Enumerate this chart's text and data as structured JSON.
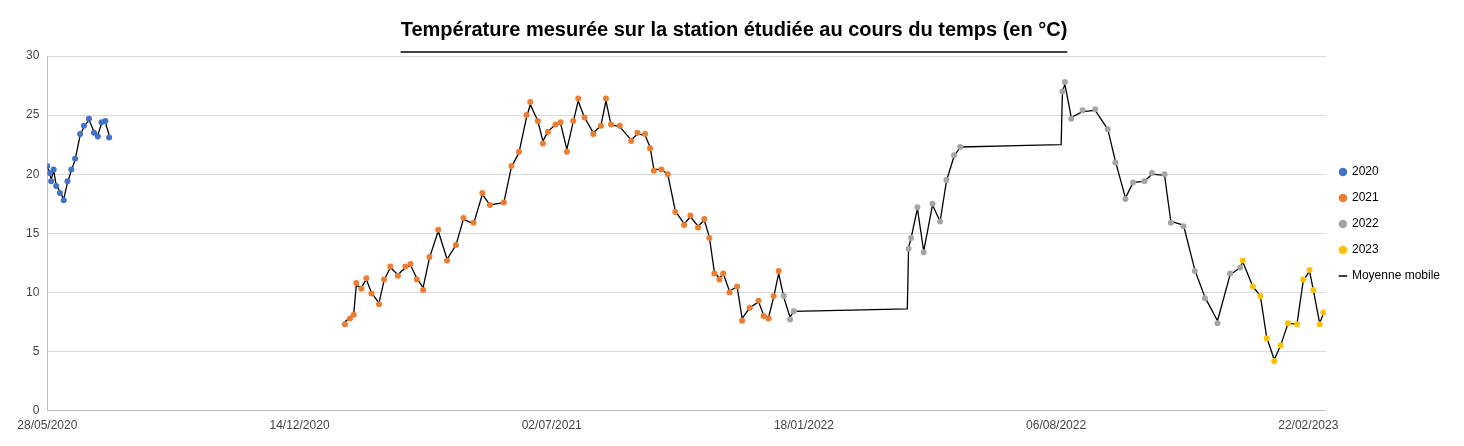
{
  "chart_data": {
    "type": "scatter",
    "title": "Température mesurée sur la station étudiée au cours du temps (en °C)",
    "xlim": [
      "2020-05-28",
      "2023-03-08"
    ],
    "xticks": [
      {
        "value": "2020-05-28",
        "label": "28/05/2020"
      },
      {
        "value": "2020-12-14",
        "label": "14/12/2020"
      },
      {
        "value": "2021-07-02",
        "label": "02/07/2021"
      },
      {
        "value": "2022-01-18",
        "label": "18/01/2022"
      },
      {
        "value": "2022-08-06",
        "label": "06/08/2022"
      },
      {
        "value": "2023-02-22",
        "label": "22/02/2023"
      }
    ],
    "ylim": [
      0,
      30
    ],
    "yticks": [
      0,
      5,
      10,
      15,
      20,
      25,
      30
    ],
    "grid": "y",
    "legend": "right",
    "marker": "circle",
    "series": [
      {
        "name": "2020",
        "color": "#4472c4",
        "x": [
          "2020-05-28",
          "2020-05-30",
          "2020-05-31",
          "2020-06-02",
          "2020-06-04",
          "2020-06-07",
          "2020-06-10",
          "2020-06-13",
          "2020-06-16",
          "2020-06-19",
          "2020-06-23",
          "2020-06-26",
          "2020-06-30",
          "2020-07-04",
          "2020-07-07",
          "2020-07-10",
          "2020-07-13",
          "2020-07-16"
        ],
        "values": [
          20.7,
          20.1,
          19.4,
          20.4,
          19.0,
          18.4,
          17.8,
          19.4,
          20.4,
          21.3,
          23.4,
          24.1,
          24.7,
          23.5,
          23.2,
          24.4,
          24.5,
          23.1
        ]
      },
      {
        "name": "2021",
        "color": "#ed7d31",
        "x": [
          "2021-01-19",
          "2021-01-23",
          "2021-01-26",
          "2021-01-28",
          "2021-02-01",
          "2021-02-05",
          "2021-02-09",
          "2021-02-15",
          "2021-02-19",
          "2021-02-24",
          "2021-03-02",
          "2021-03-08",
          "2021-03-12",
          "2021-03-17",
          "2021-03-22",
          "2021-03-27",
          "2021-04-03",
          "2021-04-10",
          "2021-04-17",
          "2021-04-23",
          "2021-05-01",
          "2021-05-08",
          "2021-05-14",
          "2021-05-25",
          "2021-05-31",
          "2021-06-06",
          "2021-06-12",
          "2021-06-15",
          "2021-06-21",
          "2021-06-25",
          "2021-06-29",
          "2021-07-05",
          "2021-07-09",
          "2021-07-14",
          "2021-07-19",
          "2021-07-23",
          "2021-07-28",
          "2021-08-04",
          "2021-08-10",
          "2021-08-14",
          "2021-08-18",
          "2021-08-25",
          "2021-09-03",
          "2021-09-08",
          "2021-09-14",
          "2021-09-18",
          "2021-09-21",
          "2021-09-27",
          "2021-10-02",
          "2021-10-08",
          "2021-10-15",
          "2021-10-20",
          "2021-10-26",
          "2021-10-31",
          "2021-11-04",
          "2021-11-08",
          "2021-11-12",
          "2021-11-15",
          "2021-11-20",
          "2021-11-26",
          "2021-11-30",
          "2021-12-06",
          "2021-12-13",
          "2021-12-17",
          "2021-12-21",
          "2021-12-25",
          "2021-12-29"
        ],
        "values": [
          7.3,
          7.8,
          8.1,
          10.8,
          10.3,
          11.2,
          9.9,
          9.0,
          11.1,
          12.2,
          11.4,
          12.2,
          12.4,
          11.1,
          10.2,
          13.0,
          15.3,
          12.7,
          14.0,
          16.3,
          15.9,
          18.4,
          17.4,
          17.6,
          20.7,
          21.9,
          25.0,
          26.1,
          24.5,
          22.6,
          23.6,
          24.2,
          24.4,
          21.9,
          24.5,
          26.4,
          24.8,
          23.4,
          24.1,
          26.4,
          24.2,
          24.1,
          22.8,
          23.5,
          23.4,
          22.2,
          20.3,
          20.4,
          20.0,
          16.8,
          15.7,
          16.5,
          15.5,
          16.2,
          14.6,
          11.6,
          11.1,
          11.6,
          10.0,
          10.5,
          7.6,
          8.7,
          9.3,
          8.0,
          7.8,
          9.7,
          11.8
        ]
      },
      {
        "name": "2022",
        "color": "#a5a5a5",
        "x": [
          "2022-01-02",
          "2022-01-07",
          "2022-01-10",
          "2022-04-11",
          "2022-04-13",
          "2022-04-18",
          "2022-04-23",
          "2022-04-30",
          "2022-05-06",
          "2022-05-11",
          "2022-05-17",
          "2022-05-22",
          "2022-08-11",
          "2022-08-13",
          "2022-08-18",
          "2022-08-27",
          "2022-09-06",
          "2022-09-16",
          "2022-09-22",
          "2022-09-30",
          "2022-10-06",
          "2022-10-15",
          "2022-10-21",
          "2022-10-31",
          "2022-11-05",
          "2022-11-15",
          "2022-11-24",
          "2022-12-02",
          "2022-12-12",
          "2022-12-22",
          "2022-12-30"
        ],
        "values": [
          9.7,
          7.7,
          8.4,
          13.7,
          14.6,
          17.2,
          13.4,
          17.5,
          16.0,
          19.5,
          21.6,
          22.3,
          27.0,
          27.8,
          24.7,
          25.4,
          25.5,
          23.8,
          21.0,
          17.9,
          19.3,
          19.4,
          20.1,
          20.0,
          15.9,
          15.6,
          11.8,
          9.5,
          7.4,
          11.6,
          12.1
        ]
      },
      {
        "name": "2023",
        "color": "#ffc000",
        "x": [
          "2023-01-01",
          "2023-01-09",
          "2023-01-15",
          "2023-01-20",
          "2023-01-26",
          "2023-01-31",
          "2023-02-06",
          "2023-02-13",
          "2023-02-18",
          "2023-02-23",
          "2023-02-26",
          "2023-03-03",
          "2023-03-06"
        ],
        "values": [
          12.7,
          10.5,
          9.7,
          6.1,
          4.2,
          5.5,
          7.4,
          7.3,
          11.1,
          11.9,
          10.2,
          7.3,
          8.3
        ]
      },
      {
        "name": "Moyenne mobile",
        "type": "line",
        "marker": "none",
        "color": "#000000",
        "x": [
          "2020-05-28",
          "2020-05-30",
          "2020-05-31",
          "2020-06-02",
          "2020-06-04",
          "2020-06-07",
          "2020-06-10",
          "2020-06-13",
          "2020-06-16",
          "2020-06-19",
          "2020-06-23",
          "2020-06-26",
          "2020-06-30",
          "2020-07-04",
          "2020-07-07",
          "2020-07-10",
          "2020-07-13",
          "2020-07-16",
          "2020-10-01",
          "2021-01-19",
          "2021-01-23",
          "2021-01-26",
          "2021-01-28",
          "2021-02-01",
          "2021-02-05",
          "2021-02-09",
          "2021-02-15",
          "2021-02-19",
          "2021-02-24",
          "2021-03-02",
          "2021-03-08",
          "2021-03-12",
          "2021-03-17",
          "2021-03-22",
          "2021-03-27",
          "2021-04-03",
          "2021-04-10",
          "2021-04-17",
          "2021-04-23",
          "2021-05-01",
          "2021-05-08",
          "2021-05-14",
          "2021-05-25",
          "2021-05-31",
          "2021-06-06",
          "2021-06-12",
          "2021-06-15",
          "2021-06-21",
          "2021-06-25",
          "2021-06-29",
          "2021-07-05",
          "2021-07-09",
          "2021-07-14",
          "2021-07-19",
          "2021-07-23",
          "2021-07-28",
          "2021-08-04",
          "2021-08-10",
          "2021-08-14",
          "2021-08-18",
          "2021-08-25",
          "2021-09-03",
          "2021-09-08",
          "2021-09-14",
          "2021-09-18",
          "2021-09-21",
          "2021-09-27",
          "2021-10-02",
          "2021-10-08",
          "2021-10-15",
          "2021-10-20",
          "2021-10-26",
          "2021-10-31",
          "2021-11-04",
          "2021-11-08",
          "2021-11-12",
          "2021-11-15",
          "2021-11-20",
          "2021-11-26",
          "2021-11-30",
          "2021-12-06",
          "2021-12-13",
          "2021-12-17",
          "2021-12-21",
          "2021-12-25",
          "2021-12-29",
          "2022-01-02",
          "2022-01-07",
          "2022-01-10",
          "2022-04-10",
          "2022-04-11",
          "2022-04-13",
          "2022-04-18",
          "2022-04-23",
          "2022-04-30",
          "2022-05-06",
          "2022-05-11",
          "2022-05-17",
          "2022-05-22",
          "2022-08-10",
          "2022-08-11",
          "2022-08-13",
          "2022-08-18",
          "2022-08-27",
          "2022-09-06",
          "2022-09-16",
          "2022-09-22",
          "2022-09-30",
          "2022-10-06",
          "2022-10-15",
          "2022-10-21",
          "2022-10-31",
          "2022-11-05",
          "2022-11-15",
          "2022-11-24",
          "2022-12-02",
          "2022-12-12",
          "2022-12-22",
          "2022-12-30",
          "2023-01-01",
          "2023-01-09",
          "2023-01-15",
          "2023-01-20",
          "2023-01-26",
          "2023-01-31",
          "2023-02-06",
          "2023-02-13",
          "2023-02-18",
          "2023-02-23",
          "2023-02-26",
          "2023-03-03",
          "2023-03-06"
        ],
        "values": [
          20.6,
          20.1,
          19.5,
          20.3,
          19.1,
          18.5,
          17.9,
          19.3,
          20.3,
          21.2,
          23.3,
          24.0,
          24.6,
          23.6,
          23.3,
          24.3,
          24.4,
          23.3,
          null,
          7.5,
          7.9,
          8.2,
          10.6,
          10.4,
          11.1,
          10.0,
          9.1,
          11.0,
          12.1,
          11.5,
          12.1,
          12.3,
          11.2,
          10.4,
          12.9,
          15.2,
          12.8,
          14.0,
          16.2,
          15.8,
          18.3,
          17.4,
          17.6,
          20.6,
          21.8,
          24.8,
          25.9,
          24.5,
          22.8,
          23.6,
          24.2,
          24.3,
          22.1,
          24.4,
          26.2,
          24.8,
          23.5,
          24.1,
          26.2,
          24.2,
          24.0,
          22.9,
          23.4,
          23.3,
          22.3,
          20.4,
          20.4,
          20.0,
          16.9,
          15.8,
          16.4,
          15.6,
          16.1,
          14.7,
          11.7,
          11.2,
          11.6,
          10.1,
          10.5,
          7.8,
          8.7,
          9.2,
          8.1,
          7.9,
          9.6,
          11.6,
          9.6,
          7.9,
          8.4,
          8.6,
          13.8,
          14.6,
          17.1,
          13.5,
          17.4,
          16.0,
          19.4,
          21.5,
          22.3,
          22.5,
          27.0,
          27.6,
          24.8,
          25.3,
          25.4,
          23.8,
          21.1,
          18.0,
          19.3,
          19.4,
          20.0,
          19.9,
          16.0,
          15.7,
          11.9,
          9.6,
          7.6,
          11.5,
          12.1,
          12.6,
          10.5,
          9.7,
          6.2,
          4.3,
          5.5,
          7.4,
          7.3,
          11.0,
          11.8,
          10.2,
          7.4,
          8.2
        ]
      }
    ]
  }
}
